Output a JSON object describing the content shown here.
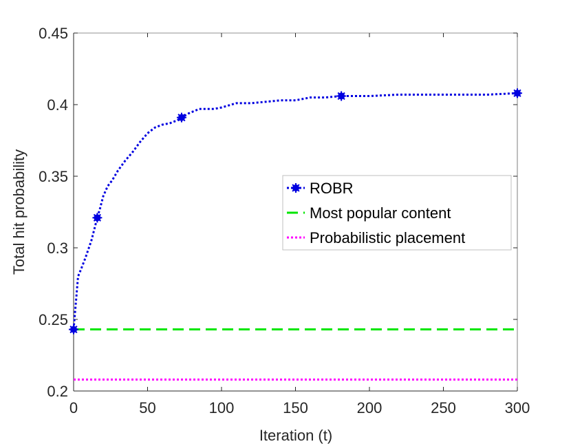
{
  "chart_data": {
    "type": "line",
    "title": "",
    "xlabel": "Iteration (t)",
    "ylabel": "Total hit probability",
    "xlim": [
      0,
      300
    ],
    "ylim": [
      0.2,
      0.45
    ],
    "xticks": [
      0,
      50,
      100,
      150,
      200,
      250,
      300
    ],
    "xtick_labels": [
      "0",
      "50",
      "100",
      "150",
      "200",
      "250",
      "300"
    ],
    "yticks": [
      0.2,
      0.25,
      0.3,
      0.35,
      0.4,
      0.45
    ],
    "ytick_labels": [
      "0.2",
      "0.25",
      "0.3",
      "0.35",
      "0.4",
      "0.45"
    ],
    "grid": false,
    "legend_position": "right-center",
    "series": [
      {
        "name": "ROBR",
        "color": "#0000e0",
        "style": "dotted",
        "marker": "asterisk-dot",
        "x": [
          0,
          3,
          5,
          8,
          12,
          15,
          16,
          18,
          20,
          23,
          26,
          30,
          35,
          40,
          45,
          50,
          55,
          60,
          65,
          70,
          73,
          78,
          85,
          95,
          100,
          110,
          120,
          130,
          140,
          150,
          160,
          170,
          181,
          190,
          200,
          220,
          240,
          260,
          280,
          300
        ],
        "y": [
          0.243,
          0.28,
          0.285,
          0.293,
          0.305,
          0.317,
          0.321,
          0.328,
          0.336,
          0.343,
          0.347,
          0.354,
          0.361,
          0.367,
          0.374,
          0.38,
          0.384,
          0.386,
          0.387,
          0.389,
          0.391,
          0.394,
          0.397,
          0.397,
          0.398,
          0.401,
          0.401,
          0.402,
          0.403,
          0.403,
          0.405,
          0.405,
          0.406,
          0.406,
          0.406,
          0.407,
          0.407,
          0.407,
          0.407,
          0.408
        ],
        "marker_x": [
          0,
          16,
          73,
          181,
          300
        ],
        "marker_y": [
          0.243,
          0.321,
          0.391,
          0.406,
          0.408
        ]
      },
      {
        "name": "Most popular content",
        "color": "#00e600",
        "style": "dashed",
        "x": [
          0,
          300
        ],
        "y": [
          0.243,
          0.243
        ]
      },
      {
        "name": "Probabilistic placement",
        "color": "#ff00ff",
        "style": "dotted",
        "x": [
          0,
          300
        ],
        "y": [
          0.208,
          0.208
        ]
      }
    ]
  }
}
